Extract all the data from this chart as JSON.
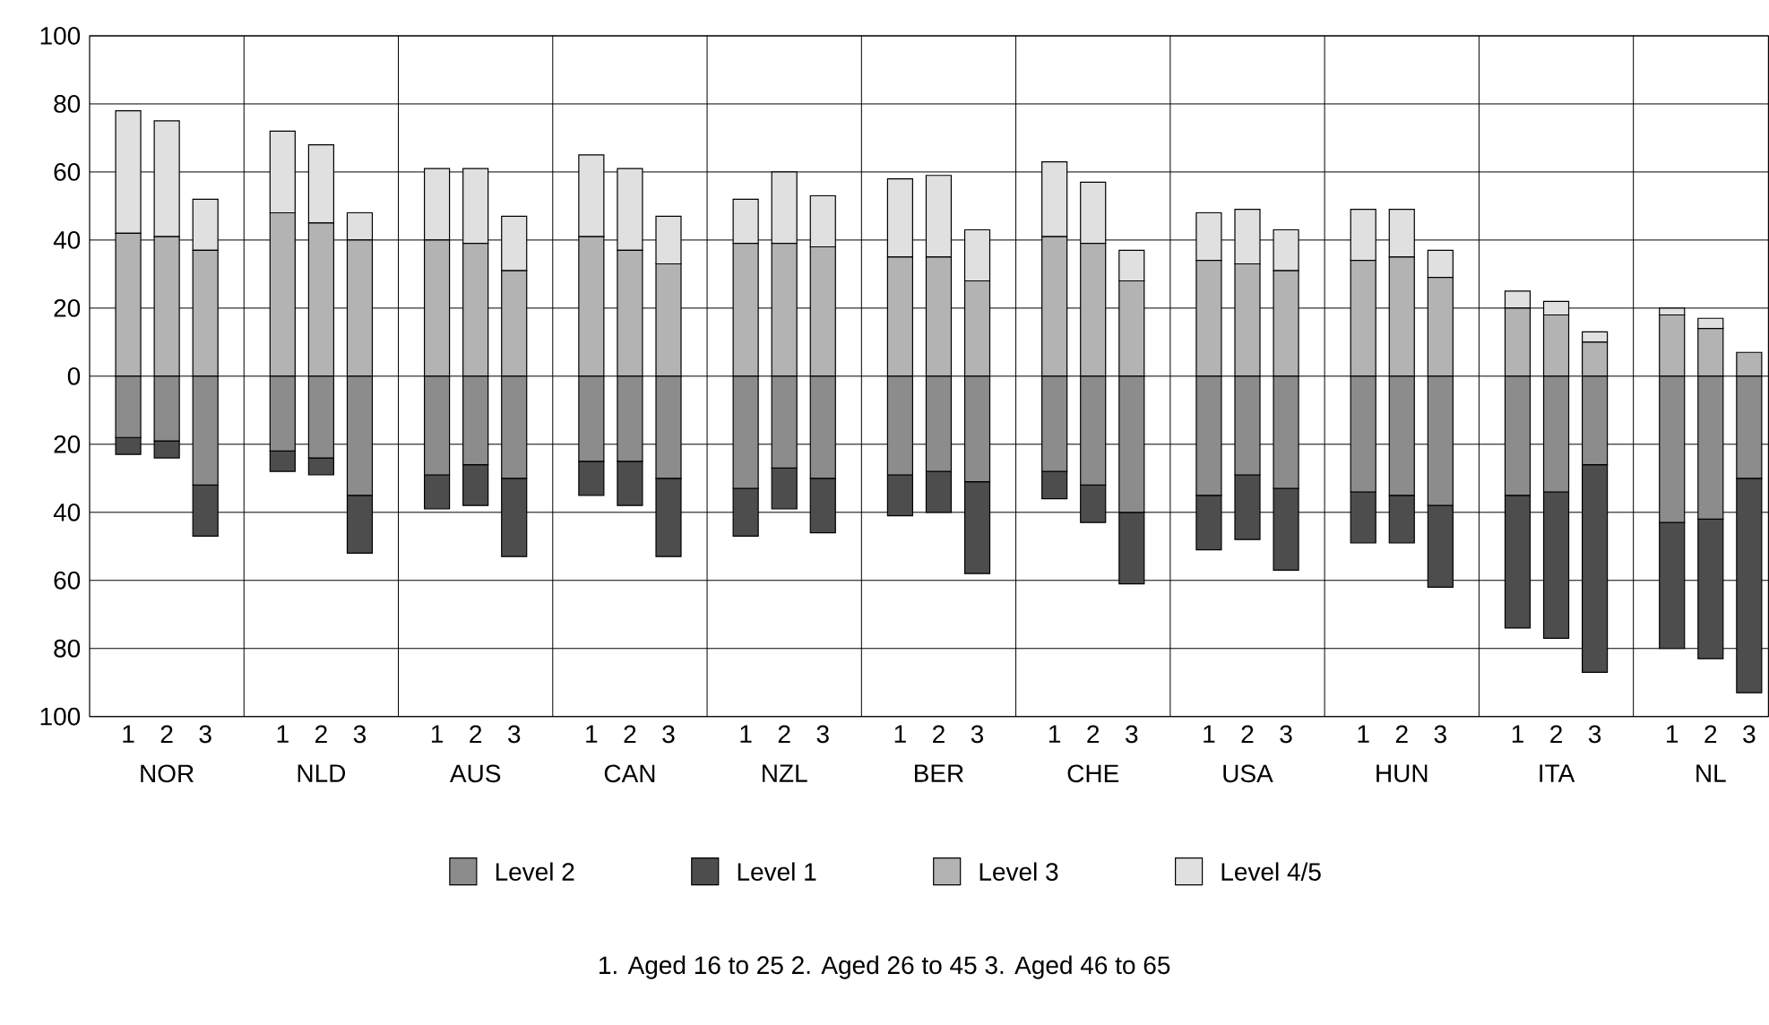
{
  "chart_data": {
    "type": "bar",
    "stacked": true,
    "grid": "y",
    "legend": "bottom",
    "categories": [
      "1",
      "2",
      "3",
      "1",
      "2",
      "3",
      "1",
      "2",
      "3",
      "1",
      "2",
      "3",
      "1",
      "2",
      "3",
      "1",
      "2",
      "3",
      "1",
      "2",
      "3",
      "1",
      "2",
      "3",
      "1",
      "2",
      "3",
      "1",
      "2",
      "3",
      "1",
      "2",
      "3"
    ],
    "ylim": [
      -100,
      100
    ],
    "yticks": [
      {
        "value": -100,
        "label": "100"
      },
      {
        "value": -80,
        "label": "80"
      },
      {
        "value": -60,
        "label": "60"
      },
      {
        "value": -40,
        "label": "40"
      },
      {
        "value": -20,
        "label": "20"
      },
      0,
      20,
      40,
      60,
      80,
      100
    ],
    "series": [
      {
        "name": "Level 2",
        "color": "#8c8c8c",
        "values": [
          -18,
          -19,
          -32,
          -22,
          -24,
          -35,
          -29,
          -26,
          -30,
          -25,
          -25,
          -30,
          -33,
          -27,
          -30,
          -29,
          -28,
          -31,
          -28,
          -32,
          -40,
          -35,
          -29,
          -33,
          -34,
          -35,
          -38,
          -35,
          -34,
          -26,
          -43,
          -42,
          -30
        ]
      },
      {
        "name": "Level 1",
        "color": "#4d4d4d",
        "values": [
          -5,
          -5,
          -15,
          -6,
          -5,
          -17,
          -10,
          -12,
          -23,
          -10,
          -13,
          -23,
          -14,
          -12,
          -16,
          -12,
          -12,
          -27,
          -8,
          -11,
          -21,
          -16,
          -19,
          -24,
          -15,
          -14,
          -24,
          -39,
          -43,
          -61,
          -37,
          -41,
          -63
        ]
      },
      {
        "name": "Level 3",
        "color": "#b3b3b3",
        "values": [
          42,
          41,
          37,
          48,
          45,
          40,
          40,
          39,
          31,
          41,
          37,
          33,
          39,
          39,
          38,
          35,
          35,
          28,
          41,
          39,
          28,
          34,
          33,
          31,
          34,
          35,
          29,
          20,
          18,
          10,
          18,
          14,
          7
        ]
      },
      {
        "name": "Level 4/5",
        "color": "#e0e0e0",
        "values": [
          36,
          34,
          15,
          24,
          23,
          8,
          21,
          22,
          16,
          24,
          24,
          14,
          13,
          21,
          15,
          23,
          24,
          15,
          22,
          18,
          9,
          14,
          16,
          12,
          15,
          14,
          8,
          5,
          4,
          3,
          2,
          3,
          0
        ]
      }
    ],
    "annotations": [
      "NOR",
      "NLD",
      "AUS",
      "CAN",
      "NZL",
      "BER",
      "CHE",
      "USA",
      "HUN",
      "ITA",
      "NL",
      "1. Aged 16 to 25     2. Aged 26 to 45     3. Aged 46 to 65"
    ]
  }
}
